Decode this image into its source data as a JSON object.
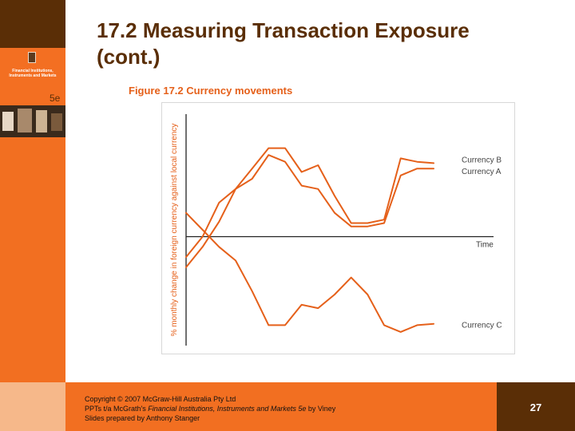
{
  "title": {
    "line1": "17.2  Measuring Transaction Exposure",
    "line2": "(cont.)"
  },
  "book_cover": {
    "title_lines": [
      "Financial Institutions,",
      "Instruments and Markets"
    ],
    "edition": "5e"
  },
  "figure": {
    "caption": "Figure 17.2 Currency movements"
  },
  "chart_data": {
    "type": "line",
    "ylabel": "% monthly change in foreign currency against local currency",
    "xlabel": "Time",
    "x": [
      0,
      1,
      2,
      3,
      4,
      5,
      6,
      7,
      8,
      9,
      10,
      11,
      12,
      13,
      14,
      15
    ],
    "series": [
      {
        "name": "Currency B",
        "values": [
          -4.5,
          -1.5,
          2.2,
          7.0,
          10.0,
          13.0,
          13.0,
          9.5,
          10.5,
          6.0,
          2.0,
          2.0,
          2.5,
          11.5,
          11.0,
          10.8
        ]
      },
      {
        "name": "Currency A",
        "values": [
          -3.0,
          0.0,
          5.0,
          7.0,
          8.5,
          12.0,
          11.0,
          7.5,
          7.0,
          3.5,
          1.5,
          1.5,
          2.0,
          9.0,
          10.0,
          10.0
        ]
      },
      {
        "name": "Currency C",
        "values": [
          3.5,
          1.0,
          -1.5,
          -3.5,
          -8.0,
          -13.0,
          -13.0,
          -10.0,
          -10.5,
          -8.5,
          -6.0,
          -8.5,
          -13.0,
          -14.0,
          -13.0,
          -12.8
        ]
      }
    ],
    "ylim": [
      -16,
      18
    ],
    "xlim": [
      0,
      15
    ],
    "colors": {
      "line": "#e5601a",
      "axis": "#222222"
    },
    "grid": false,
    "legend": "inline-right"
  },
  "footer": {
    "line1": "Copyright © 2007 McGraw-Hill Australia Pty Ltd",
    "line2_prefix": "PPTs t/a McGrath's ",
    "line2_italic": "Financial Institutions, Instruments and Markets 5e",
    "line2_suffix": " by Viney",
    "line3": "Slides prepared by Anthony Stanger",
    "page_number": "27"
  },
  "colors": {
    "brand_orange": "#f26f21",
    "brand_brown": "#5a2e06"
  }
}
